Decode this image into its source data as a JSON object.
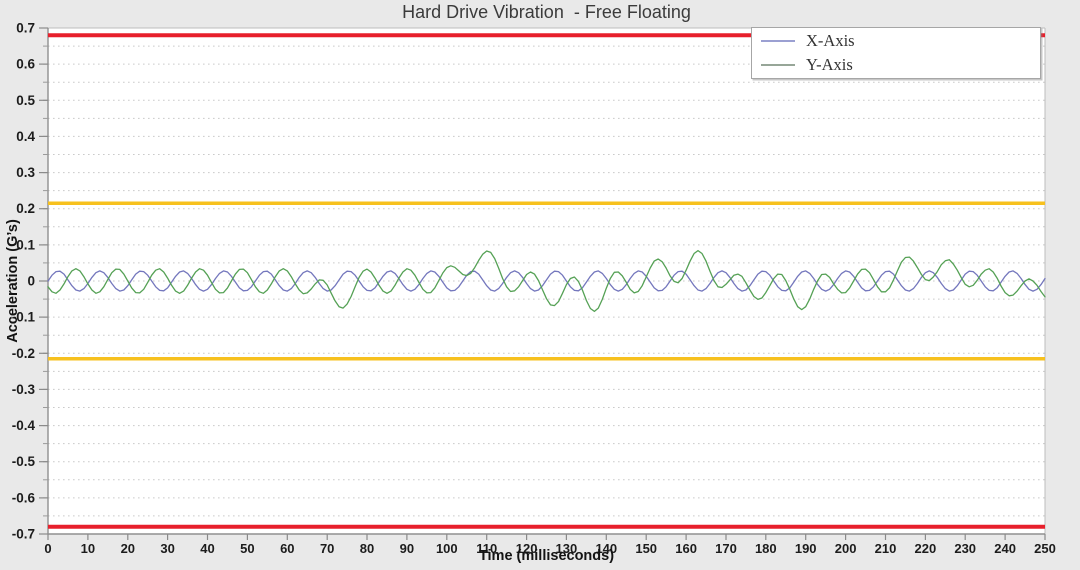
{
  "page": {
    "background": "#e9e9e9"
  },
  "chart_data": {
    "type": "line",
    "title": "Hard Drive Vibration  - Free Floating",
    "xlabel": "Time (milliseconds)",
    "ylabel": "Acceleration (G’s)",
    "xlim": [
      0,
      250
    ],
    "ylim": [
      -0.7,
      0.7
    ],
    "x_ticks": [
      0,
      10,
      20,
      30,
      40,
      50,
      60,
      70,
      80,
      90,
      100,
      110,
      120,
      130,
      140,
      150,
      160,
      170,
      180,
      190,
      200,
      210,
      220,
      230,
      240,
      250
    ],
    "y_ticks": [
      0.7,
      0.6,
      0.5,
      0.4,
      0.3,
      0.2,
      0.1,
      0,
      -0.1,
      -0.2,
      -0.3,
      -0.4,
      -0.5,
      -0.6,
      -0.7
    ],
    "y_tick_labels": [
      "0.7",
      "0.6",
      "0.5",
      "0.4",
      "0.3",
      "0.2",
      "0.1",
      "0",
      "-0.1",
      "-0.2",
      "-0.3",
      "-0.4",
      "-0.5",
      "-0.6",
      "-0.7"
    ],
    "minor_grid_step": 0.05,
    "grid": "horizontal-dotted",
    "legend": {
      "position": "top-right",
      "entries": [
        {
          "label": "X-Axis",
          "sample_color": "#9ba0d2"
        },
        {
          "label": "Y-Axis",
          "sample_color": "#97a698"
        }
      ]
    },
    "limit_lines": [
      {
        "name": "upper-red-limit",
        "value": 0.68,
        "color": "#e7202c",
        "width": 4
      },
      {
        "name": "lower-red-limit",
        "value": -0.68,
        "color": "#e7202c",
        "width": 4
      },
      {
        "name": "upper-orange-limit",
        "value": 0.215,
        "color": "#f7c11e",
        "width": 3.5
      },
      {
        "name": "lower-orange-limit",
        "value": -0.215,
        "color": "#f7c11e",
        "width": 3.5
      }
    ],
    "x_start": 0,
    "x_step": 1,
    "series": [
      {
        "name": "X-Axis",
        "color": "#7477bd",
        "values": [
          0,
          0.016,
          0.026,
          0.027,
          0.019,
          0.003,
          -0.013,
          -0.025,
          -0.028,
          -0.021,
          -0.007,
          0.01,
          0.023,
          0.028,
          0.023,
          0.01,
          -0.007,
          -0.021,
          -0.028,
          -0.025,
          -0.013,
          0.003,
          0.019,
          0.027,
          0.026,
          0.016,
          0,
          -0.016,
          -0.026,
          -0.027,
          -0.019,
          -0.003,
          0.013,
          0.025,
          0.028,
          0.021,
          0.007,
          -0.01,
          -0.023,
          -0.028,
          -0.023,
          -0.01,
          0.007,
          0.021,
          0.028,
          0.025,
          0.013,
          -0.003,
          -0.019,
          -0.027,
          -0.026,
          -0.016,
          0,
          0.016,
          0.026,
          0.027,
          0.019,
          0.003,
          -0.013,
          -0.025,
          -0.028,
          -0.021,
          -0.007,
          0.01,
          0.023,
          0.028,
          0.023,
          0.01,
          -0.007,
          -0.021,
          -0.028,
          -0.025,
          -0.013,
          0.003,
          0.019,
          0.027,
          0.026,
          0.016,
          0,
          -0.016,
          -0.026,
          -0.027,
          -0.019,
          -0.003,
          0.013,
          0.025,
          0.028,
          0.021,
          0.007,
          -0.01,
          -0.023,
          -0.028,
          -0.023,
          -0.01,
          0.007,
          0.021,
          0.028,
          0.025,
          0.013,
          -0.003,
          -0.019,
          -0.027,
          -0.026,
          -0.016,
          0,
          0.016,
          0.026,
          0.027,
          0.019,
          0.003,
          -0.013,
          -0.025,
          -0.028,
          -0.021,
          -0.007,
          0.01,
          0.023,
          0.028,
          0.023,
          0.01,
          -0.007,
          -0.021,
          -0.028,
          -0.025,
          -0.013,
          0.003,
          0.019,
          0.027,
          0.026,
          0.016,
          0,
          -0.016,
          -0.026,
          -0.027,
          -0.019,
          -0.003,
          0.013,
          0.025,
          0.028,
          0.021,
          0.007,
          -0.01,
          -0.023,
          -0.028,
          -0.023,
          -0.01,
          0.007,
          0.021,
          0.028,
          0.025,
          0.013,
          -0.003,
          -0.019,
          -0.027,
          -0.026,
          -0.016,
          0,
          0.016,
          0.026,
          0.027,
          0.019,
          0.003,
          -0.013,
          -0.025,
          -0.028,
          -0.021,
          -0.007,
          0.01,
          0.023,
          0.028,
          0.023,
          0.01,
          -0.007,
          -0.021,
          -0.028,
          -0.025,
          -0.013,
          0.003,
          0.019,
          0.027,
          0.026,
          0.016,
          0,
          -0.016,
          -0.026,
          -0.027,
          -0.019,
          -0.003,
          0.013,
          0.025,
          0.028,
          0.021,
          0.007,
          -0.01,
          -0.023,
          -0.028,
          -0.023,
          -0.01,
          0.007,
          0.021,
          0.028,
          0.025,
          0.013,
          -0.003,
          -0.019,
          -0.027,
          -0.026,
          -0.016,
          0,
          0.016,
          0.026,
          0.027,
          0.019,
          0.003,
          -0.013,
          -0.025,
          -0.028,
          -0.021,
          -0.007,
          0.01,
          0.023,
          0.028,
          0.023,
          0.01,
          -0.007,
          -0.021,
          -0.028,
          -0.025,
          -0.013,
          0.003,
          0.019,
          0.027,
          0.026,
          0.016,
          0,
          -0.016,
          -0.026,
          -0.027,
          -0.019,
          -0.003,
          0.013,
          0.025,
          0.028,
          0.021,
          0.007,
          -0.01,
          -0.023,
          -0.028,
          -0.023,
          -0.01,
          0.007
        ]
      },
      {
        "name": "Y-Axis",
        "color": "#55a155",
        "values": [
          -0.016,
          -0.03,
          -0.034,
          -0.025,
          -0.008,
          0.012,
          0.028,
          0.034,
          0.028,
          0.012,
          -0.008,
          -0.025,
          -0.034,
          -0.03,
          -0.016,
          0.004,
          0.023,
          0.033,
          0.032,
          0.019,
          0,
          -0.019,
          -0.032,
          -0.033,
          -0.023,
          -0.004,
          0.016,
          0.03,
          0.034,
          0.025,
          0.008,
          -0.012,
          -0.028,
          -0.034,
          -0.028,
          -0.012,
          0.008,
          0.025,
          0.034,
          0.03,
          0.016,
          -0.004,
          -0.023,
          -0.033,
          -0.032,
          -0.019,
          0,
          0.019,
          0.032,
          0.033,
          0.023,
          0.004,
          -0.016,
          -0.03,
          -0.034,
          -0.025,
          -0.008,
          0.012,
          0.028,
          0.034,
          0.028,
          0.012,
          -0.008,
          -0.025,
          -0.035,
          -0.033,
          -0.022,
          -0.008,
          0.003,
          0.002,
          -0.011,
          -0.033,
          -0.055,
          -0.071,
          -0.075,
          -0.064,
          -0.043,
          -0.016,
          0.01,
          0.027,
          0.033,
          0.025,
          0.008,
          -0.012,
          -0.028,
          -0.034,
          -0.028,
          -0.012,
          0.008,
          0.025,
          0.034,
          0.03,
          0.016,
          -0.004,
          -0.023,
          -0.033,
          -0.032,
          -0.019,
          0.001,
          0.022,
          0.037,
          0.042,
          0.038,
          0.028,
          0.018,
          0.015,
          0.021,
          0.037,
          0.057,
          0.074,
          0.083,
          0.079,
          0.062,
          0.036,
          0.007,
          -0.016,
          -0.029,
          -0.027,
          -0.016,
          0.001,
          0.018,
          0.025,
          0.019,
          0.001,
          -0.024,
          -0.049,
          -0.066,
          -0.068,
          -0.057,
          -0.034,
          -0.01,
          0.007,
          0.011,
          -0.001,
          -0.025,
          -0.054,
          -0.076,
          -0.084,
          -0.075,
          -0.051,
          -0.02,
          0.007,
          0.024,
          0.025,
          0.014,
          -0.004,
          -0.023,
          -0.033,
          -0.029,
          -0.013,
          0.011,
          0.036,
          0.055,
          0.061,
          0.053,
          0.036,
          0.014,
          -0.001,
          -0.005,
          0.007,
          0.03,
          0.055,
          0.076,
          0.084,
          0.076,
          0.055,
          0.027,
          0.001,
          -0.016,
          -0.018,
          -0.009,
          0.003,
          0.016,
          0.019,
          0.013,
          -0.005,
          -0.025,
          -0.043,
          -0.051,
          -0.047,
          -0.032,
          -0.013,
          0.007,
          0.019,
          0.018,
          0.001,
          -0.023,
          -0.05,
          -0.071,
          -0.079,
          -0.071,
          -0.05,
          -0.023,
          0.001,
          0.018,
          0.019,
          0.01,
          -0.008,
          -0.023,
          -0.033,
          -0.032,
          -0.019,
          0,
          0.019,
          0.032,
          0.033,
          0.023,
          0.004,
          -0.016,
          -0.03,
          -0.03,
          -0.019,
          0.003,
          0.028,
          0.052,
          0.065,
          0.066,
          0.055,
          0.037,
          0.018,
          0.004,
          0.001,
          0.011,
          0.026,
          0.045,
          0.056,
          0.059,
          0.047,
          0.03,
          0.009,
          -0.009,
          -0.016,
          -0.012,
          0.002,
          0.019,
          0.03,
          0.034,
          0.025,
          0.008,
          -0.014,
          -0.032,
          -0.041,
          -0.039,
          -0.028,
          -0.013,
          0,
          0.006,
          0,
          -0.012,
          -0.029,
          -0.044
        ]
      }
    ]
  }
}
